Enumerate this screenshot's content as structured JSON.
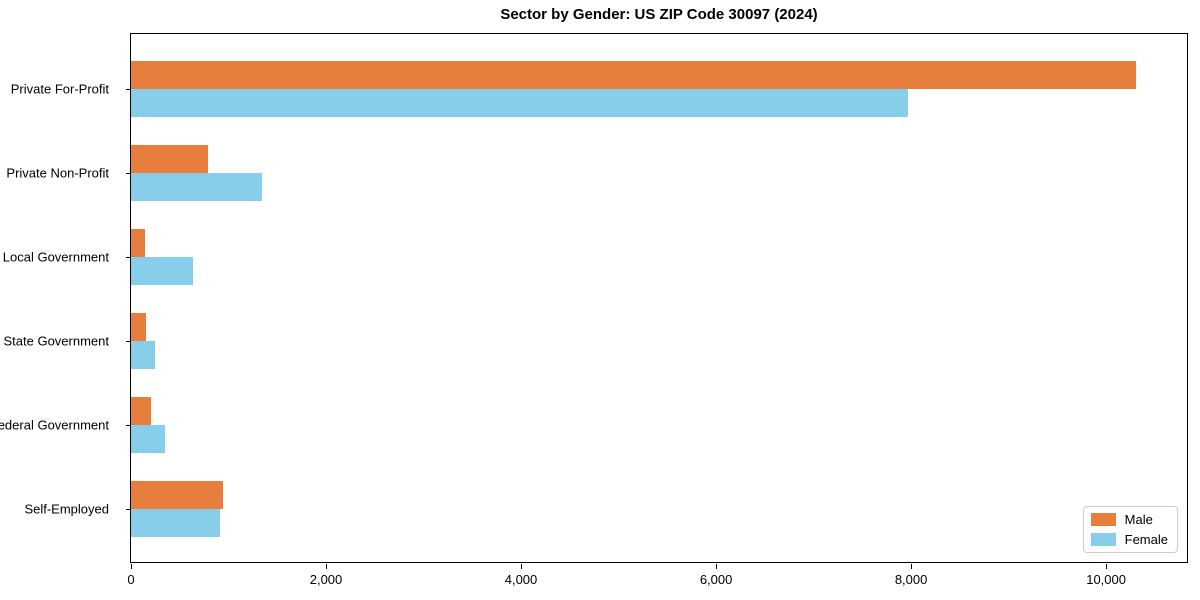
{
  "chart_data": {
    "type": "bar",
    "orientation": "horizontal",
    "title": "Sector by Gender: US ZIP Code 30097 (2024)",
    "categories": [
      "Private For-Profit",
      "Private Non-Profit",
      "Local Government",
      "State Government",
      "Federal Government",
      "Self-Employed"
    ],
    "series": [
      {
        "name": "Male",
        "color": "#e87e3d",
        "values": [
          10310,
          790,
          145,
          155,
          205,
          945
        ]
      },
      {
        "name": "Female",
        "color": "#87ceeb",
        "values": [
          7970,
          1345,
          635,
          245,
          350,
          915
        ]
      }
    ],
    "xlabel": "",
    "ylabel": "",
    "xlim": [
      0,
      10850
    ],
    "x_ticks": {
      "values": [
        0,
        2000,
        4000,
        6000,
        8000,
        10000
      ],
      "labels": [
        "0",
        "2,000",
        "4,000",
        "6,000",
        "8,000",
        "10,000"
      ]
    },
    "grid": false,
    "legend": {
      "position": "lower right"
    },
    "colors": {
      "male": "#e87e3d",
      "female": "#87ceeb",
      "frame": "#000000",
      "legend_border": "#cccccc"
    }
  }
}
